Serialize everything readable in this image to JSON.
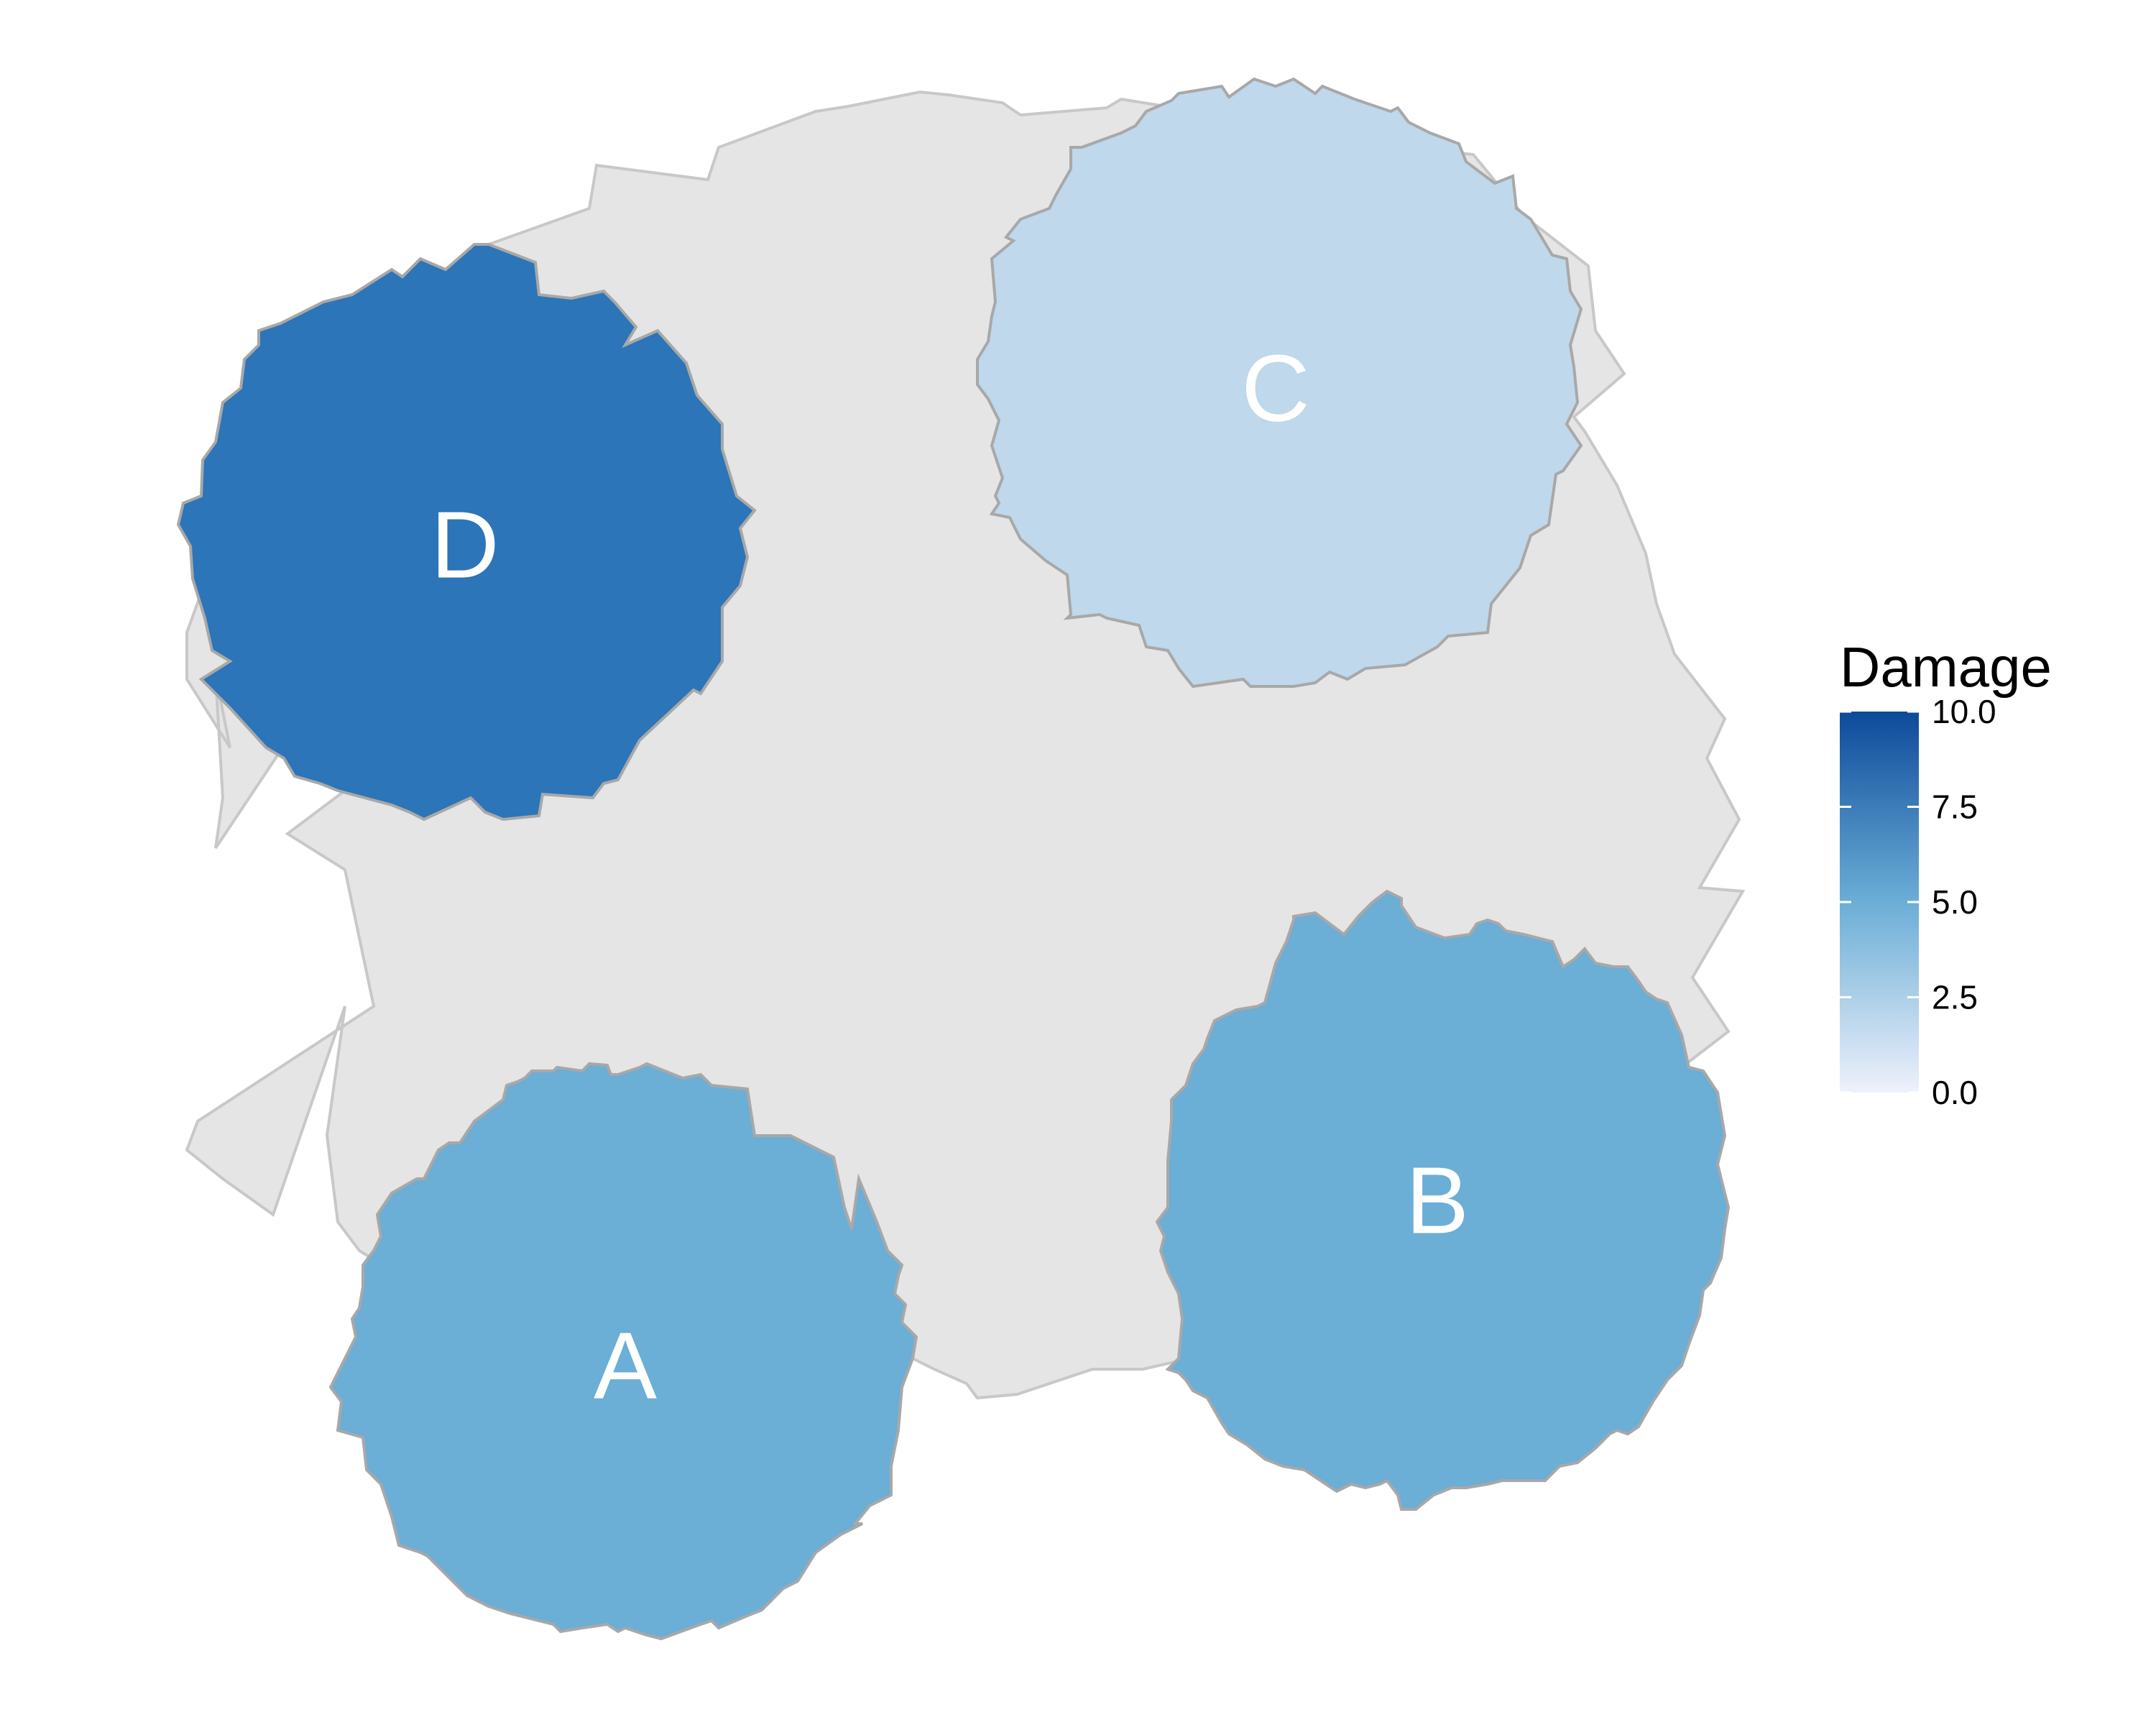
{
  "legend": {
    "title": "Damage",
    "scale_min": 0,
    "scale_max": 10,
    "ticks": [
      {
        "value": 0,
        "label": "0.0"
      },
      {
        "value": 2.5,
        "label": "2.5"
      },
      {
        "value": 5,
        "label": "5.0"
      },
      {
        "value": 7.5,
        "label": "7.5"
      },
      {
        "value": 10,
        "label": "10.0"
      }
    ],
    "color_low": "#eef1fb",
    "color_high": "#0d4a9a"
  },
  "regions": [
    {
      "label": "A",
      "damage": 5.6,
      "color": "#6baed6"
    },
    {
      "label": "B",
      "damage": 5.6,
      "color": "#6baed6"
    },
    {
      "label": "C",
      "damage": 3.0,
      "color": "#bfd8eb"
    },
    {
      "label": "D",
      "damage": 8.2,
      "color": "#2b75b8"
    }
  ],
  "colors": {
    "background_area": "#e5e5e5",
    "outline": "#b4b4b4",
    "label_text": "#ffffff"
  }
}
